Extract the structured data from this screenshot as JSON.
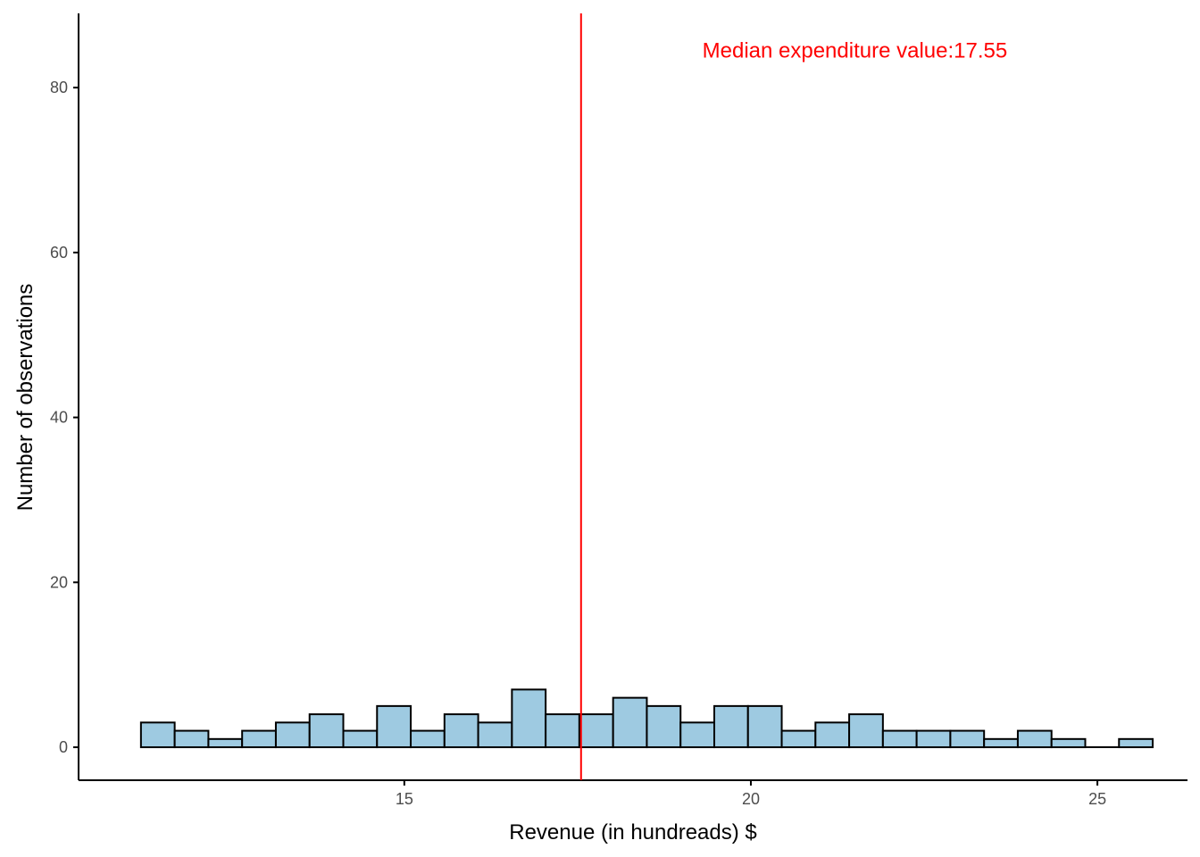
{
  "chart_data": {
    "type": "bar",
    "subtype": "histogram",
    "title": "",
    "xlabel": "Revenue (in hundreads) $",
    "ylabel": "Number of observations",
    "xlim": [
      10.3,
      26.3
    ],
    "ylim": [
      -4,
      89
    ],
    "x_ticks": [
      15,
      20,
      25
    ],
    "y_ticks": [
      0,
      20,
      40,
      60,
      80
    ],
    "grid": false,
    "legend": "none",
    "bin_width": 0.4866,
    "bin_start": 11.2,
    "counts": [
      3,
      2,
      1,
      2,
      3,
      4,
      2,
      5,
      2,
      4,
      3,
      7,
      4,
      4,
      6,
      5,
      3,
      5,
      5,
      2,
      3,
      4,
      2,
      2,
      2,
      1,
      2,
      1,
      0,
      1
    ],
    "bar_fill": "#9ecae1",
    "bar_stroke": "#000000",
    "median": {
      "value": 17.55,
      "color": "#ff0000",
      "label": "Median expenditure value:17.55",
      "label_x": 19.3,
      "label_y": 84.5
    }
  }
}
